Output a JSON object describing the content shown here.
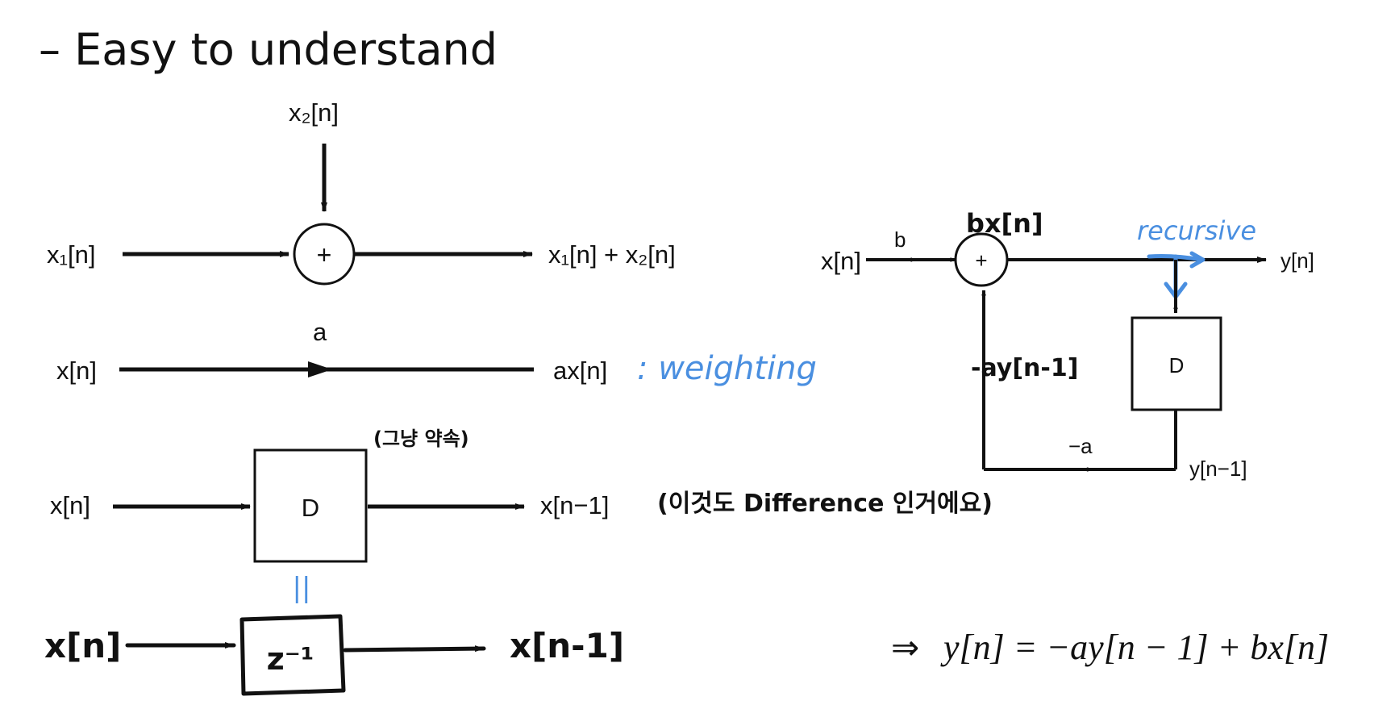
{
  "title": "– Easy to understand",
  "adder_diagram": {
    "input_top": "x₂[n]",
    "input_left": "x₁[n]",
    "sum_symbol": "+",
    "output": "x₁[n] + x₂[n]"
  },
  "multiplier_diagram": {
    "gain": "a",
    "input": "x[n]",
    "output": "ax[n]",
    "note": ": weighting"
  },
  "delay_diagram": {
    "input": "x[n]",
    "block": "D",
    "output": "x[n−1]",
    "note_top": "(그냥 약속)",
    "note_right": "(이것도 Difference 인거에요)",
    "equals_mark": "||"
  },
  "z_diagram": {
    "input": "x[n]",
    "block": "z⁻¹",
    "output": "x[n-1]"
  },
  "recursive_diagram": {
    "input": "x[n]",
    "gain_b": "b",
    "sum_symbol": "+",
    "bx_note": "bx[n]",
    "recursive_note": "recursive",
    "output": "y[n]",
    "block": "D",
    "delay_out": "y[n−1]",
    "gain_neg_a": "−a",
    "feedback_note": "-ay[n-1]"
  },
  "equation": {
    "implies": "⇒",
    "text": "y[n] = −ay[n − 1] + bx[n]"
  }
}
